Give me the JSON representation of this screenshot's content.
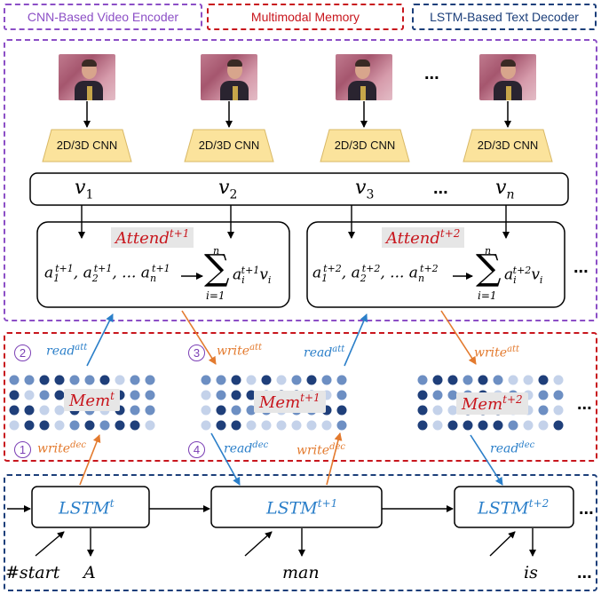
{
  "legend": {
    "encoder": "CNN-Based Video Encoder",
    "memory": "Multimodal Memory",
    "decoder": "LSTM-Based Text Decoder"
  },
  "colors": {
    "encoder": "#8c4fc6",
    "memory": "#c8161d",
    "decoder": "#1c3f7a",
    "read_arrow": "#2b7fc9",
    "write_arrow": "#e37a2e",
    "cnn_fill": "#fbe39c",
    "dot_dark": "#1f3f7a",
    "dot_mid": "#6d8fc3",
    "dot_light": "#c4d2ea"
  },
  "encoder": {
    "frame_ellipsis": "...",
    "frame_icons": [
      "video-frame-icon",
      "video-frame-icon",
      "video-frame-icon",
      "video-frame-icon"
    ],
    "cnn_label": "2D/3D CNN",
    "features": [
      "1",
      "2",
      "3",
      "n"
    ],
    "feature_ellipsis": "...",
    "attend": [
      {
        "label": "Attend",
        "sup": "t+1",
        "idx": "t+1"
      },
      {
        "label": "Attend",
        "sup": "t+2",
        "idx": "t+2"
      }
    ],
    "sum_upper": "n",
    "sum_lower": "i=1",
    "attend_ellipsis": "..."
  },
  "memory": {
    "steps": [
      "2",
      "3",
      "1",
      "4"
    ],
    "read_att": "read",
    "read_att_sup": "att",
    "write_att": "write",
    "write_att_sup": "att",
    "write_dec": "write",
    "write_dec_sup": "dec",
    "read_dec": "read",
    "read_dec_sup": "dec",
    "mems": [
      {
        "label": "Mem",
        "sup": "t"
      },
      {
        "label": "Mem",
        "sup": "t+1"
      },
      {
        "label": "Mem",
        "sup": "t+2"
      }
    ],
    "ellipsis": "..."
  },
  "decoder": {
    "cells": [
      {
        "label": "LSTM",
        "sup": "t"
      },
      {
        "label": "LSTM",
        "sup": "t+1"
      },
      {
        "label": "LSTM",
        "sup": "t+2"
      }
    ],
    "input_token": "#start",
    "outputs": [
      "A",
      "man",
      "is"
    ],
    "ellipsis": "..."
  }
}
